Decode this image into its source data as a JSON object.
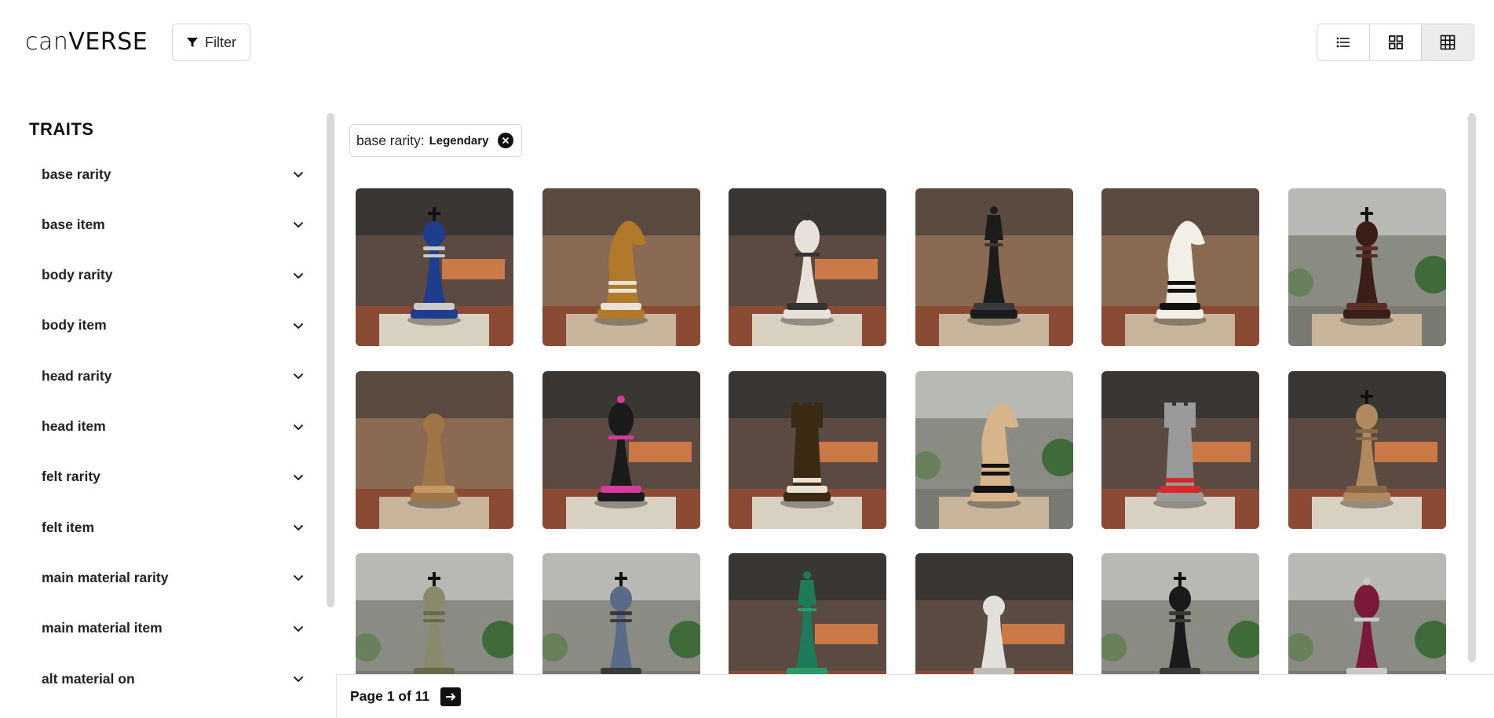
{
  "header": {
    "logo_lo": "can",
    "logo_hi": "VERSE",
    "filter_label": "Filter",
    "view_modes": [
      {
        "name": "list-view-icon"
      },
      {
        "name": "large-grid-view-icon"
      },
      {
        "name": "small-grid-view-icon",
        "active": true
      }
    ]
  },
  "sidebar": {
    "title": "TRAITS",
    "traits": [
      {
        "label": "base rarity"
      },
      {
        "label": "base item"
      },
      {
        "label": "body rarity"
      },
      {
        "label": "body item"
      },
      {
        "label": "head rarity"
      },
      {
        "label": "head item"
      },
      {
        "label": "felt rarity"
      },
      {
        "label": "felt item"
      },
      {
        "label": "main material rarity"
      },
      {
        "label": "main material item"
      },
      {
        "label": "alt material on"
      }
    ]
  },
  "active_filter": {
    "key": "base rarity:",
    "value": "Legendary"
  },
  "gallery": {
    "items": [
      {
        "piece": "king",
        "color": "#1e3d8f",
        "accent": "#c9c9c9",
        "bg": "dark"
      },
      {
        "piece": "knight",
        "color": "#b07a2a",
        "accent": "#e8e2d4",
        "bg": "warm"
      },
      {
        "piece": "bishop",
        "color": "#e6e2da",
        "accent": "#333333",
        "bg": "dark"
      },
      {
        "piece": "queen",
        "color": "#1c1c1c",
        "accent": "#3a3a3a",
        "bg": "warm"
      },
      {
        "piece": "knight",
        "color": "#f2efe6",
        "accent": "#111111",
        "bg": "warm"
      },
      {
        "piece": "king",
        "color": "#3a1e18",
        "accent": "#5a2e24",
        "bg": "light"
      },
      {
        "piece": "pawn",
        "color": "#a07548",
        "accent": "#c4985e",
        "bg": "warm"
      },
      {
        "piece": "bishop",
        "color": "#1a1a1a",
        "accent": "#d63a9a",
        "bg": "dark"
      },
      {
        "piece": "rook",
        "color": "#3a2a14",
        "accent": "#e8e2d4",
        "bg": "dark"
      },
      {
        "piece": "knight",
        "color": "#d8b48a",
        "accent": "#111111",
        "bg": "light"
      },
      {
        "piece": "rook",
        "color": "#9a9a9a",
        "accent": "#d62a2a",
        "bg": "dark"
      },
      {
        "piece": "king",
        "color": "#b08a5e",
        "accent": "#8a6a44",
        "bg": "dark"
      },
      {
        "piece": "king",
        "color": "#8a8a6a",
        "accent": "#6a6a4a",
        "bg": "light"
      },
      {
        "piece": "king",
        "color": "#5a6a8a",
        "accent": "#3a3a3a",
        "bg": "light"
      },
      {
        "piece": "queen",
        "color": "#1f7a5a",
        "accent": "#2a9a6a",
        "bg": "dark"
      },
      {
        "piece": "pawn",
        "color": "#e2e0da",
        "accent": "#bdbbb4",
        "bg": "dark"
      },
      {
        "piece": "king",
        "color": "#1a1a1a",
        "accent": "#3a3a3a",
        "bg": "light"
      },
      {
        "piece": "bishop",
        "color": "#7a1a3a",
        "accent": "#c8c8c8",
        "bg": "light"
      }
    ]
  },
  "pager": {
    "label": "Page 1 of 11"
  }
}
